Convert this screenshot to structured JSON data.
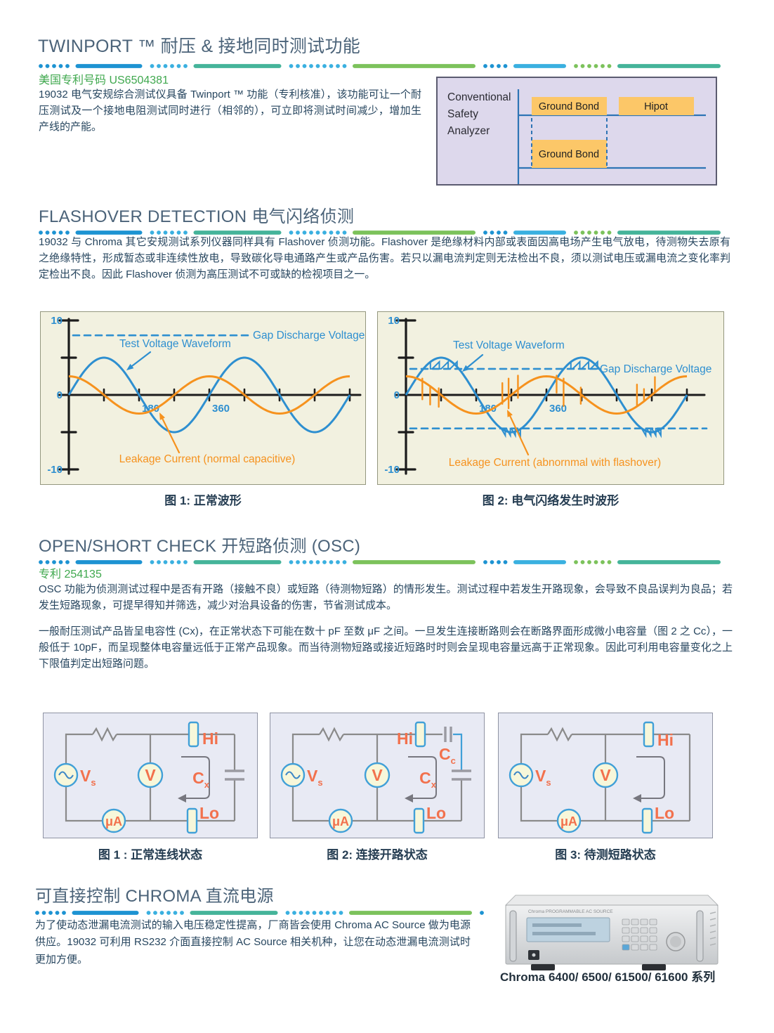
{
  "theme": {
    "heading_color": "#4b6379",
    "patent_green": "#3fa84e",
    "body_color": "#27465f",
    "caption_color": "#253d52",
    "separator_colors": [
      "#1d93d2",
      "#3ab0e0",
      "#45b49a",
      "#7cc25b"
    ],
    "diagram_bg": "#ddd8ec",
    "diagram_line_blue": "#2e74b5",
    "highlight_orange": "#fcc768",
    "chart_bg": "#f2f1e0",
    "circuit_bg": "#e8eaf4",
    "circuit_label_orange": "#f2714d",
    "component_stroke_blue": "#41a0d8",
    "component_fill": "#f7f7da"
  },
  "sections": {
    "twinport": {
      "title": "TWINPORT ™ 耐压 & 接地同时测试功能",
      "patent": "美国专利号码 US6504381",
      "body": "19032 电气安规综合测试仪具备 Twinport ™ 功能（专利核准），该功能可让一个耐压测试及一个接地电阻测试同时进行（相邻的），可立即将测试时间减少，增加生产线的产能。",
      "diagram": {
        "label_lines": [
          "Conventional",
          "Safety",
          "Analyzer"
        ],
        "top_boxes": [
          "Ground Bond",
          "Hipot"
        ],
        "bottom_box": "Ground Bond"
      }
    },
    "flashover": {
      "title": "FLASHOVER DETECTION 电气闪络侦测",
      "body": "19032 与 Chroma 其它安规测试系列仪器同样具有 Flashover 侦测功能。Flashover 是绝缘材料内部或表面因高电场产生电气放电，待测物失去原有之绝缘特性，形成暂态或非连续性放电，导致碳化导电通路产生或产品伤害。若只以漏电流判定则无法检出不良，须以测试电压或漏电流之变化率判定检出不良。因此 Flashover 侦测为高压测试不可或缺的检视项目之一。"
    },
    "osc": {
      "title": "OPEN/SHORT CHECK 开短路侦测 (OSC)",
      "patent": "专利 254135",
      "body1": "OSC 功能为侦测测试过程中是否有开路（接触不良）或短路（待测物短路）的情形发生。测试过程中若发生开路现象，会导致不良品误判为良品；若发生短路现象，可提早得知并筛选，减少对治具设备的伤害，节省测试成本。",
      "body2": "一般耐压测试产品皆呈电容性 (Cx)，在正常状态下可能在数十 pF 至数 μF 之间。一旦发生连接断路则会在断路界面形成微小电容量（图 2 之 Cc），一般低于 10pF，而呈现整体电容量远低于正常产品现象。而当待测物短路或接近短路时时则会呈现电容量远高于正常现象。因此可利用电容量变化之上下限值判定出短路问题。"
    },
    "acsource": {
      "title": "可直接控制 CHROMA 直流电源",
      "body": "为了使动态泄漏电流测试的输入电压稳定性提高，厂商皆会使用 Chroma AC Source 做为电源供应。19032 可利用 RS232 介面直接控制 AC Source 相关机种，让您在动态泄漏电流测试时更加方便。",
      "image_caption": "Chroma 6400/ 6500/ 61500/ 61600 系列",
      "device_panel_text": "Chroma PROGRAMMABLE AC SOURCE"
    }
  },
  "chart_data": [
    {
      "type": "line",
      "title": "图 1: 正常波形",
      "x_unit": "degrees",
      "x_range": [
        0,
        720
      ],
      "ylim": [
        -10,
        10
      ],
      "grid": false,
      "x_ticks": [
        90,
        180,
        270,
        360,
        450,
        540,
        630,
        720
      ],
      "x_tick_labels": [
        {
          "deg": 180,
          "text": "180"
        },
        {
          "deg": 360,
          "text": "360"
        }
      ],
      "y_tick_labels": [
        {
          "value": 10,
          "text": "10"
        },
        {
          "value": 0,
          "text": "0"
        },
        {
          "value": -10,
          "text": "-10"
        }
      ],
      "series": [
        {
          "name": "Test Voltage Waveform",
          "shape": "sine",
          "amplitude": 5,
          "period_deg": 360,
          "phase_deg": 0,
          "color": "#2e8fd0"
        },
        {
          "name": "Leakage Current (normal capacitive)",
          "shape": "sine",
          "amplitude": 2.5,
          "period_deg": 360,
          "phase_deg": 90,
          "color": "#f6921e"
        }
      ],
      "gap_lines": [
        {
          "value": 8,
          "label": "Gap Discharge Voltage"
        }
      ]
    },
    {
      "type": "line",
      "title": "图 2: 电气闪络发生时波形",
      "x_unit": "degrees",
      "x_range": [
        0,
        720
      ],
      "ylim": [
        -10,
        10
      ],
      "grid": false,
      "x_ticks": [
        90,
        180,
        270,
        360,
        450,
        540,
        630,
        720
      ],
      "x_tick_labels": [
        {
          "deg": 180,
          "text": "180"
        },
        {
          "deg": 360,
          "text": "360"
        }
      ],
      "y_tick_labels": [
        {
          "value": 10,
          "text": "10"
        },
        {
          "value": 0,
          "text": "0"
        },
        {
          "value": -10,
          "text": "-10"
        }
      ],
      "series": [
        {
          "name": "Test Voltage Waveform",
          "shape": "sine",
          "amplitude": 5,
          "period_deg": 360,
          "phase_deg": 0,
          "color": "#2e8fd0"
        },
        {
          "name": "Leakage Current (abnornmal with flashover)",
          "shape": "sine",
          "amplitude": 2.5,
          "period_deg": 360,
          "phase_deg": 90,
          "color": "#f6921e"
        }
      ],
      "gap_lines": [
        {
          "value": 3.5,
          "label": "Gap Discharge Voltage"
        },
        {
          "value": -4.5,
          "label": ""
        }
      ],
      "flashover_jags": [
        {
          "value": 3.5
        },
        {
          "value": -4.5
        }
      ],
      "flashover_spikes": [
        {
          "deg": 42,
          "from": -0.6,
          "to": 2.2
        },
        {
          "deg": 62,
          "from": -1.3,
          "to": 1.2
        },
        {
          "deg": 84,
          "from": -1.6,
          "to": 0.9
        },
        {
          "deg": 247,
          "from": -1.2,
          "to": 1.6
        },
        {
          "deg": 263,
          "from": -1.8,
          "to": 2.2
        },
        {
          "deg": 287,
          "from": -0.4,
          "to": 2.6
        },
        {
          "deg": 386,
          "from": 0.3,
          "to": 2.6
        },
        {
          "deg": 404,
          "from": -1.5,
          "to": 2.2
        },
        {
          "deg": 448,
          "from": -1.2,
          "to": 1
        },
        {
          "deg": 592,
          "from": -1.4,
          "to": 1.4
        },
        {
          "deg": 610,
          "from": -0.7,
          "to": 0.8
        },
        {
          "deg": 638,
          "from": 0.4,
          "to": 2.4
        }
      ]
    }
  ],
  "circuits": {
    "labels": {
      "source": "V",
      "source_sub": "s",
      "voltmeter": "V",
      "ammeter": "μA",
      "hi": "Hi",
      "lo": "Lo",
      "cx": "C",
      "cx_sub": "x",
      "cc": "C",
      "cc_sub": "c"
    },
    "items": [
      {
        "caption": "图 1 : 正常连线状态"
      },
      {
        "caption": "图 2: 连接开路状态"
      },
      {
        "caption": "图 3: 待测短路状态"
      }
    ]
  }
}
